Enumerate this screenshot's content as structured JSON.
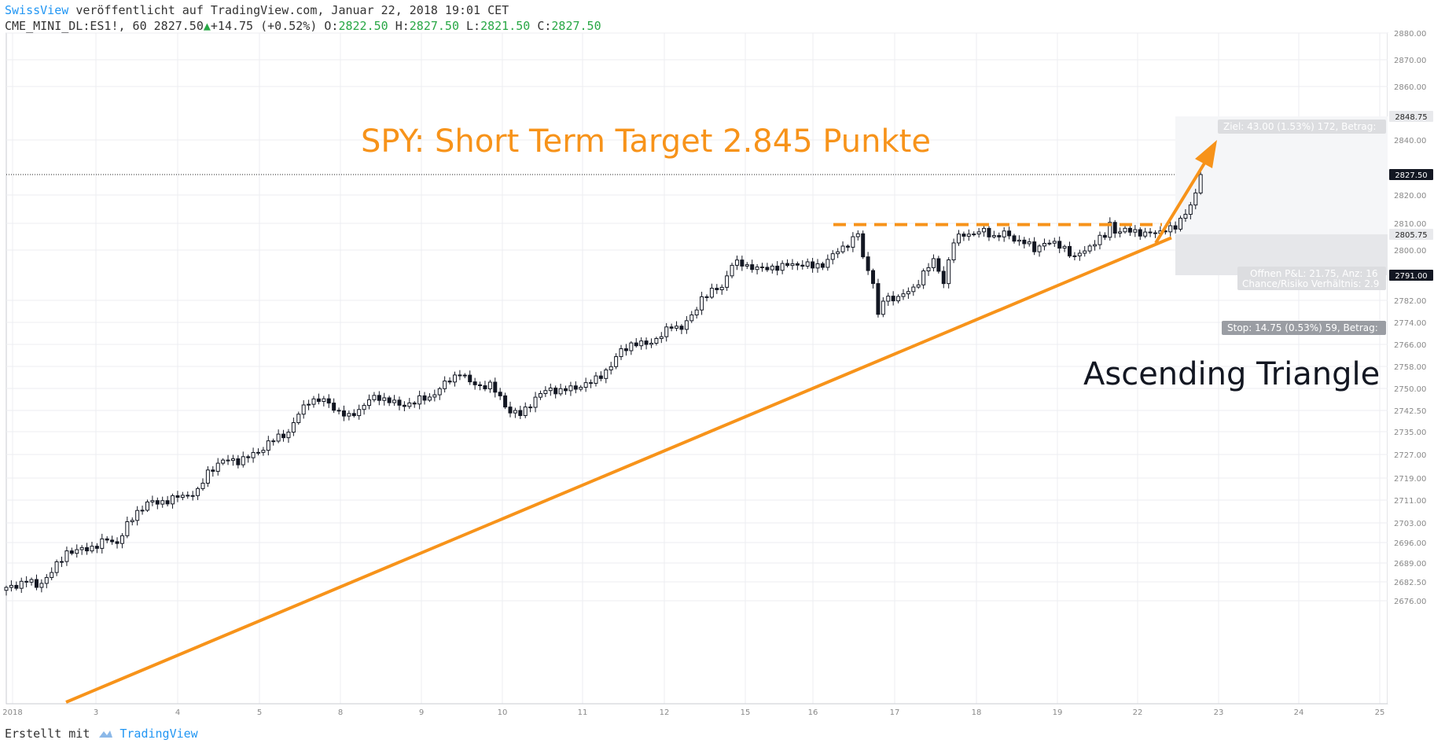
{
  "header": {
    "brand": "SwissView",
    "published_text": "veröffentlicht auf TradingView.com, Januar 22, 2018 19:01 CET",
    "symbol_interval": "CME_MINI_DL:ES1!, 60",
    "last_price": "2827.50",
    "change": "+14.75 (+0.52%)",
    "o_label": "O:",
    "o_value": "2822.50",
    "h_label": "H:",
    "h_value": "2827.50",
    "l_label": "L:",
    "l_value": "2821.50",
    "c_label": "C:",
    "c_value": "2827.50"
  },
  "footer": {
    "created_with": "Erstellt mit",
    "brand": "TradingView"
  },
  "colors": {
    "accent": "#f7931a",
    "price_tag_bg": "#131722",
    "candle": "#131722",
    "brand_blue": "#2196f3"
  },
  "chart_data": {
    "type": "candlestick",
    "title": "SPY: Short Term Target 2.845 Punkte",
    "annotation": "Ascending Triangle",
    "ylim": [
      2674,
      2882
    ],
    "grid": true,
    "y_ticks": [
      2676.0,
      2682.5,
      2689.0,
      2696.0,
      2703.0,
      2711.0,
      2719.0,
      2727.0,
      2735.0,
      2742.5,
      2750.0,
      2758.0,
      2766.0,
      2774.0,
      2782.0,
      2800.0,
      2810.0,
      2820.0,
      2840.0,
      2860.0,
      2870.0,
      2880.0
    ],
    "x_labels": [
      "2018",
      "3",
      "4",
      "5",
      "8",
      "9",
      "10",
      "11",
      "12",
      "15",
      "16",
      "17",
      "18",
      "19",
      "22",
      "23",
      "24",
      "25"
    ],
    "price_tags": [
      {
        "value": 2848.75,
        "style": "light"
      },
      {
        "value": 2827.5,
        "style": "dark"
      },
      {
        "value": 2805.75,
        "style": "light"
      },
      {
        "value": 2791.0,
        "style": "dark"
      }
    ],
    "position_labels": {
      "target": "Ziel: 43.00 (1.53%) 172, Betrag:",
      "open_pl": "Offnen P&L: 21.75, Anz: 16",
      "ratio": "Chance/Risiko Verhältnis: 2.9",
      "stop": "Stop: 14.75 (0.53%) 59, Betrag:"
    },
    "entry": 2805.75,
    "target": 2848.75,
    "stop": 2791.0,
    "last": 2827.5,
    "resistance": 2809.5,
    "support_line": [
      [
        0.0,
        2675.0
      ],
      [
        216.0,
        2805.0
      ]
    ],
    "close_path": [
      [
        0,
        2680
      ],
      [
        4,
        2683
      ],
      [
        6,
        2681
      ],
      [
        8,
        2684
      ],
      [
        10,
        2688
      ],
      [
        12,
        2693
      ],
      [
        14,
        2693
      ],
      [
        16,
        2694
      ],
      [
        18,
        2695
      ],
      [
        20,
        2697
      ],
      [
        22,
        2696
      ],
      [
        24,
        2702
      ],
      [
        26,
        2707
      ],
      [
        28,
        2710
      ],
      [
        30,
        2710
      ],
      [
        32,
        2711
      ],
      [
        34,
        2712
      ],
      [
        36,
        2713
      ],
      [
        38,
        2714
      ],
      [
        40,
        2721
      ],
      [
        42,
        2724
      ],
      [
        44,
        2725
      ],
      [
        46,
        2725
      ],
      [
        48,
        2726
      ],
      [
        50,
        2728
      ],
      [
        52,
        2731
      ],
      [
        54,
        2733
      ],
      [
        56,
        2735
      ],
      [
        58,
        2741
      ],
      [
        60,
        2746
      ],
      [
        62,
        2746
      ],
      [
        64,
        2745
      ],
      [
        66,
        2742
      ],
      [
        68,
        2740
      ],
      [
        70,
        2743
      ],
      [
        72,
        2746
      ],
      [
        74,
        2747
      ],
      [
        76,
        2746
      ],
      [
        78,
        2744
      ],
      [
        80,
        2745
      ],
      [
        82,
        2746
      ],
      [
        84,
        2747
      ],
      [
        86,
        2750
      ],
      [
        88,
        2753
      ],
      [
        90,
        2756
      ],
      [
        92,
        2752
      ],
      [
        94,
        2751
      ],
      [
        96,
        2751
      ],
      [
        98,
        2747
      ],
      [
        100,
        2742
      ],
      [
        102,
        2741
      ],
      [
        104,
        2745
      ],
      [
        106,
        2748
      ],
      [
        108,
        2750
      ],
      [
        110,
        2749
      ],
      [
        112,
        2750
      ],
      [
        114,
        2751
      ],
      [
        116,
        2752
      ],
      [
        118,
        2755
      ],
      [
        120,
        2758
      ],
      [
        122,
        2764
      ],
      [
        124,
        2766
      ],
      [
        126,
        2766
      ],
      [
        128,
        2767
      ],
      [
        130,
        2769
      ],
      [
        132,
        2773
      ],
      [
        134,
        2772
      ],
      [
        136,
        2776
      ],
      [
        138,
        2783
      ],
      [
        140,
        2785
      ],
      [
        142,
        2787
      ],
      [
        144,
        2795
      ],
      [
        146,
        2795
      ],
      [
        148,
        2794
      ],
      [
        150,
        2793
      ],
      [
        152,
        2794
      ],
      [
        154,
        2794
      ],
      [
        156,
        2795
      ],
      [
        158,
        2795
      ],
      [
        160,
        2794
      ],
      [
        162,
        2795
      ],
      [
        164,
        2798
      ],
      [
        166,
        2801
      ],
      [
        168,
        2804
      ],
      [
        169,
        2806
      ],
      [
        170,
        2797
      ],
      [
        172,
        2789
      ],
      [
        173,
        2776
      ],
      [
        174,
        2782
      ],
      [
        176,
        2783
      ],
      [
        178,
        2784
      ],
      [
        180,
        2786
      ],
      [
        182,
        2792
      ],
      [
        184,
        2796
      ],
      [
        186,
        2789
      ],
      [
        187,
        2796
      ],
      [
        188,
        2803
      ],
      [
        190,
        2806
      ],
      [
        192,
        2806
      ],
      [
        194,
        2807
      ],
      [
        196,
        2805
      ],
      [
        198,
        2806
      ],
      [
        200,
        2804
      ],
      [
        202,
        2803
      ],
      [
        204,
        2800
      ],
      [
        206,
        2803
      ],
      [
        208,
        2802
      ],
      [
        210,
        2801
      ],
      [
        212,
        2797
      ],
      [
        214,
        2800
      ],
      [
        216,
        2803
      ],
      [
        218,
        2805
      ],
      [
        219,
        2810
      ],
      [
        220,
        2807
      ],
      [
        222,
        2807
      ],
      [
        224,
        2807
      ],
      [
        226,
        2806
      ],
      [
        228,
        2806
      ],
      [
        230,
        2808
      ],
      [
        232,
        2808
      ],
      [
        234,
        2814
      ],
      [
        236,
        2820
      ],
      [
        237,
        2827.5
      ]
    ]
  }
}
